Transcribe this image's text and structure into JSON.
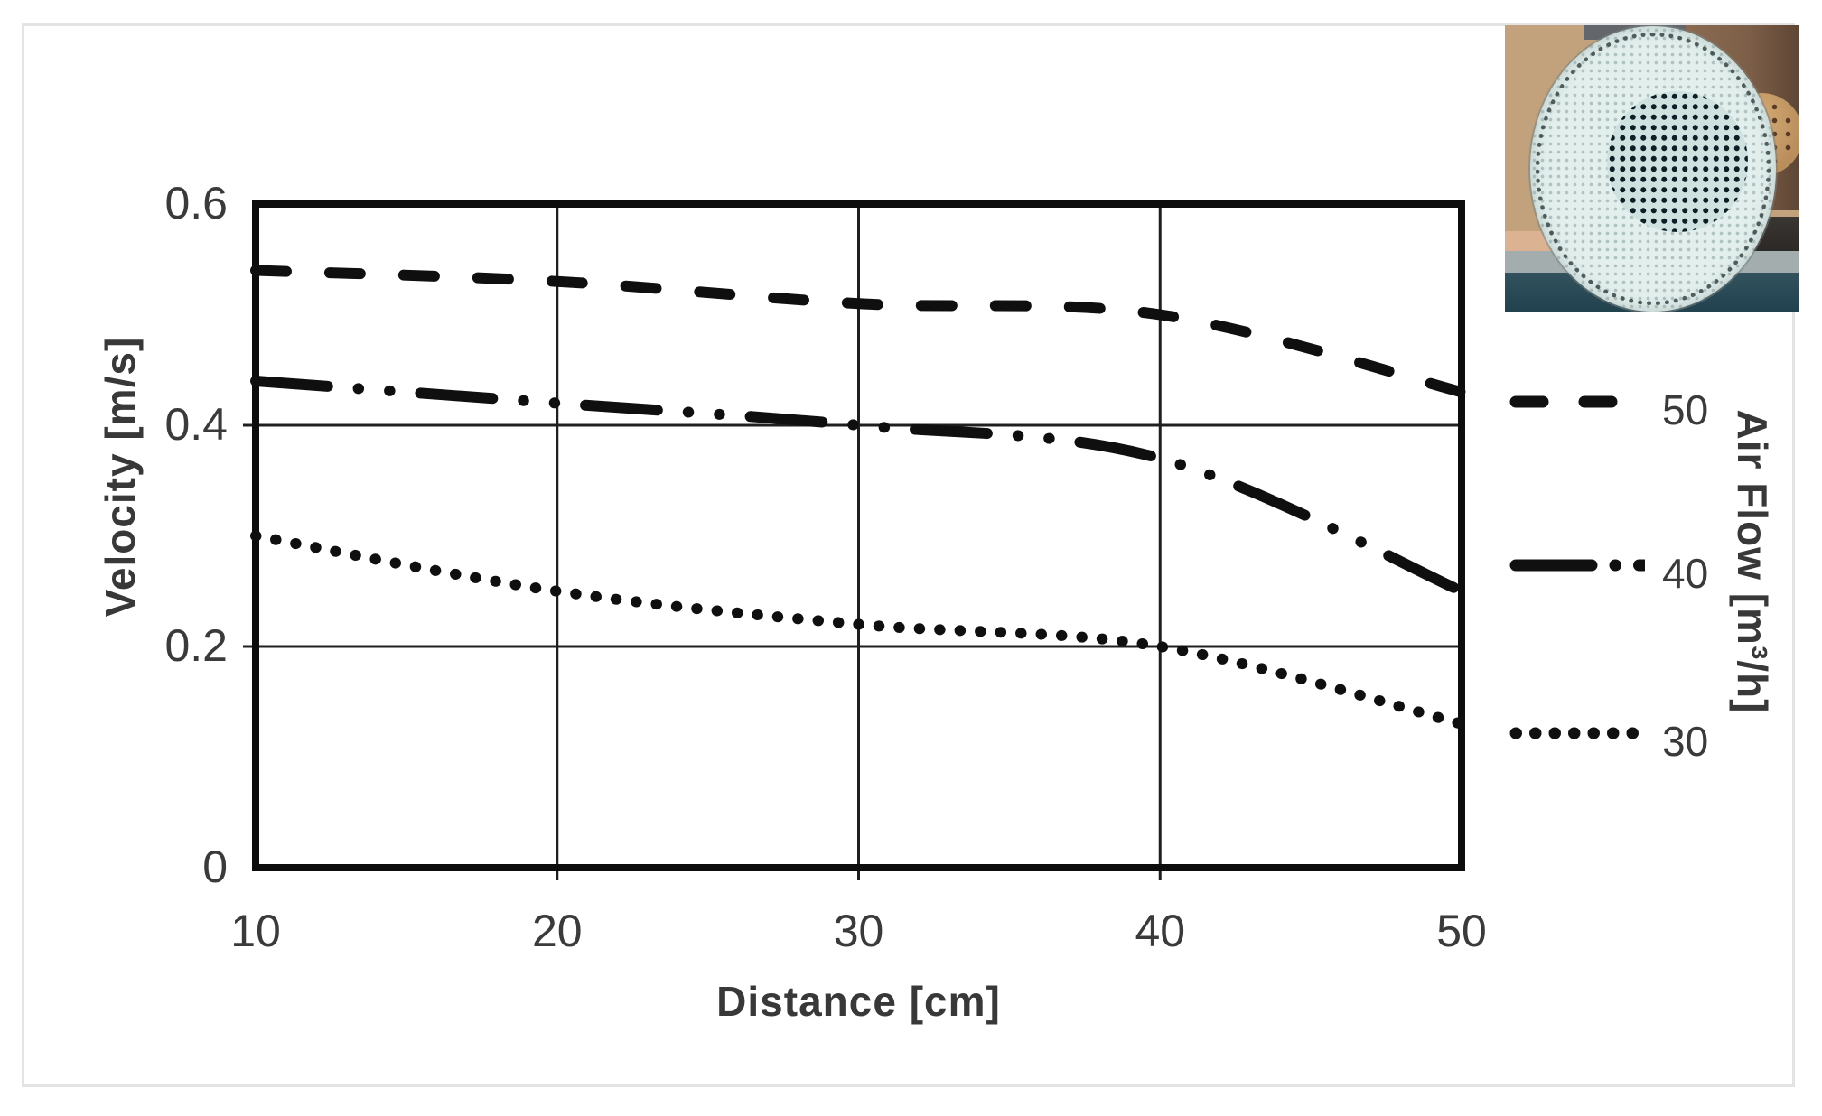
{
  "chart_data": {
    "type": "line",
    "x": [
      10,
      20,
      30,
      40,
      50
    ],
    "series": [
      {
        "name": "50",
        "style": "dash",
        "values": [
          0.54,
          0.53,
          0.51,
          0.5,
          0.43
        ]
      },
      {
        "name": "40",
        "style": "dash-dot",
        "values": [
          0.44,
          0.42,
          0.4,
          0.37,
          0.25
        ]
      },
      {
        "name": "30",
        "style": "dot",
        "values": [
          0.3,
          0.25,
          0.22,
          0.2,
          0.13
        ]
      }
    ],
    "title": "",
    "xlabel": "Distance [cm]",
    "ylabel": "Velocity [m/s]",
    "xlim": [
      10,
      50
    ],
    "ylim": [
      0,
      0.6
    ],
    "x_ticks": [
      "10",
      "20",
      "30",
      "40",
      "50"
    ],
    "y_ticks": [
      "0",
      "0.2",
      "0.4",
      "0.6"
    ],
    "grid": true,
    "line_color": "#0f0f0f",
    "legend_title": "Air Flow [m³/h]",
    "legend_position": "right"
  },
  "axes": {
    "x_title": "Distance [cm]",
    "y_title": "Velocity [m/s]"
  },
  "legend": {
    "title": "Air Flow [m³/h]",
    "items": [
      "50",
      "40",
      "30"
    ]
  },
  "photo": {
    "description": "swirl-diffuser-photo"
  }
}
